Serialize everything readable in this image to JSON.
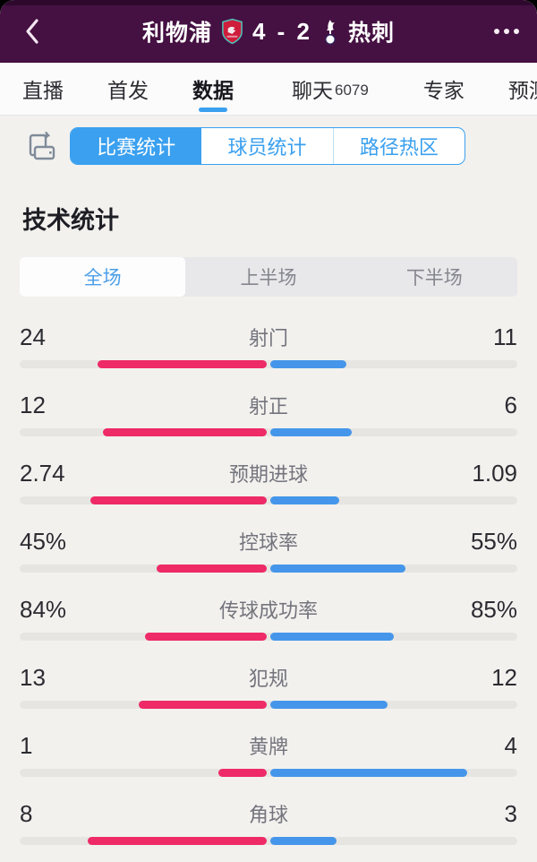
{
  "header": {
    "home_team": "利物浦",
    "score": "4 - 2",
    "away_team": "热刺",
    "bg_color": "#451042"
  },
  "nav_tabs": {
    "items": [
      {
        "label": "直播",
        "active": false,
        "badge": ""
      },
      {
        "label": "首发",
        "active": false,
        "badge": ""
      },
      {
        "label": "数据",
        "active": true,
        "badge": ""
      },
      {
        "label": "聊天",
        "active": false,
        "badge": "6079"
      },
      {
        "label": "专家",
        "active": false,
        "badge": ""
      },
      {
        "label": "预测",
        "active": false,
        "badge": ""
      }
    ],
    "underline_color": "#3aa0ef"
  },
  "sub_tabs": {
    "items": [
      "比赛统计",
      "球员统计",
      "路径热区"
    ],
    "active_index": 0,
    "accent_color": "#3aa0ef"
  },
  "section": {
    "title": "技术统计"
  },
  "period_tabs": {
    "items": [
      "全场",
      "上半场",
      "下半场"
    ],
    "active_index": 0
  },
  "chart_data": {
    "type": "bar",
    "title": "技术统计 (全场)",
    "legend": [
      "利物浦",
      "热刺"
    ],
    "categories": [
      "射门",
      "射正",
      "预期进球",
      "控球率",
      "传球成功率",
      "犯规",
      "黄牌",
      "角球"
    ],
    "series": [
      {
        "name": "利物浦",
        "values": [
          24,
          12,
          2.74,
          45,
          84,
          13,
          1,
          8
        ]
      },
      {
        "name": "热刺",
        "values": [
          11,
          6,
          1.09,
          55,
          85,
          12,
          4,
          3
        ]
      }
    ]
  },
  "stats": [
    {
      "label": "射门",
      "home": "24",
      "away": "11",
      "home_val": 24,
      "away_val": 11
    },
    {
      "label": "射正",
      "home": "12",
      "away": "6",
      "home_val": 12,
      "away_val": 6
    },
    {
      "label": "预期进球",
      "home": "2.74",
      "away": "1.09",
      "home_val": 2.74,
      "away_val": 1.09
    },
    {
      "label": "控球率",
      "home": "45%",
      "away": "55%",
      "home_val": 45,
      "away_val": 55
    },
    {
      "label": "传球成功率",
      "home": "84%",
      "away": "85%",
      "home_val": 84,
      "away_val": 85
    },
    {
      "label": "犯规",
      "home": "13",
      "away": "12",
      "home_val": 13,
      "away_val": 12
    },
    {
      "label": "黄牌",
      "home": "1",
      "away": "4",
      "home_val": 1,
      "away_val": 4
    },
    {
      "label": "角球",
      "home": "8",
      "away": "3",
      "home_val": 8,
      "away_val": 3
    }
  ],
  "colors": {
    "home_bar": "#ee2a67",
    "away_bar": "#4596ea",
    "track": "#e6e5e2",
    "accent_blue": "#3aa0ef"
  }
}
